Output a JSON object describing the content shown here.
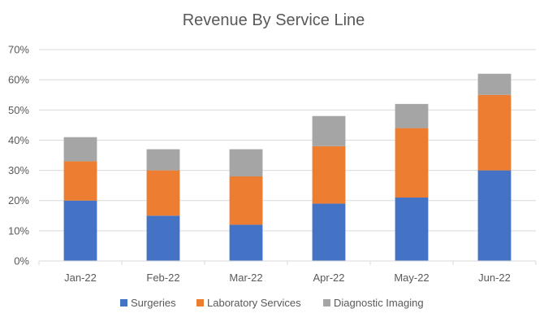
{
  "chart_data": {
    "type": "bar",
    "stacked": true,
    "title": "Revenue By Service Line",
    "categories": [
      "Jan-22",
      "Feb-22",
      "Mar-22",
      "Apr-22",
      "May-22",
      "Jun-22"
    ],
    "series": [
      {
        "name": "Surgeries",
        "color": "#4472C4",
        "values": [
          20,
          15,
          12,
          19,
          21,
          30
        ]
      },
      {
        "name": "Laboratory Services",
        "color": "#ED7D31",
        "values": [
          13,
          15,
          16,
          19,
          23,
          25
        ]
      },
      {
        "name": "Diagnostic Imaging",
        "color": "#A5A5A5",
        "values": [
          8,
          7,
          9,
          10,
          8,
          7
        ]
      }
    ],
    "y_unit": "%",
    "ylim": [
      0,
      70
    ],
    "yticks": [
      "0%",
      "10%",
      "20%",
      "30%",
      "40%",
      "50%",
      "60%",
      "70%"
    ],
    "grid": true,
    "legend_position": "bottom"
  }
}
